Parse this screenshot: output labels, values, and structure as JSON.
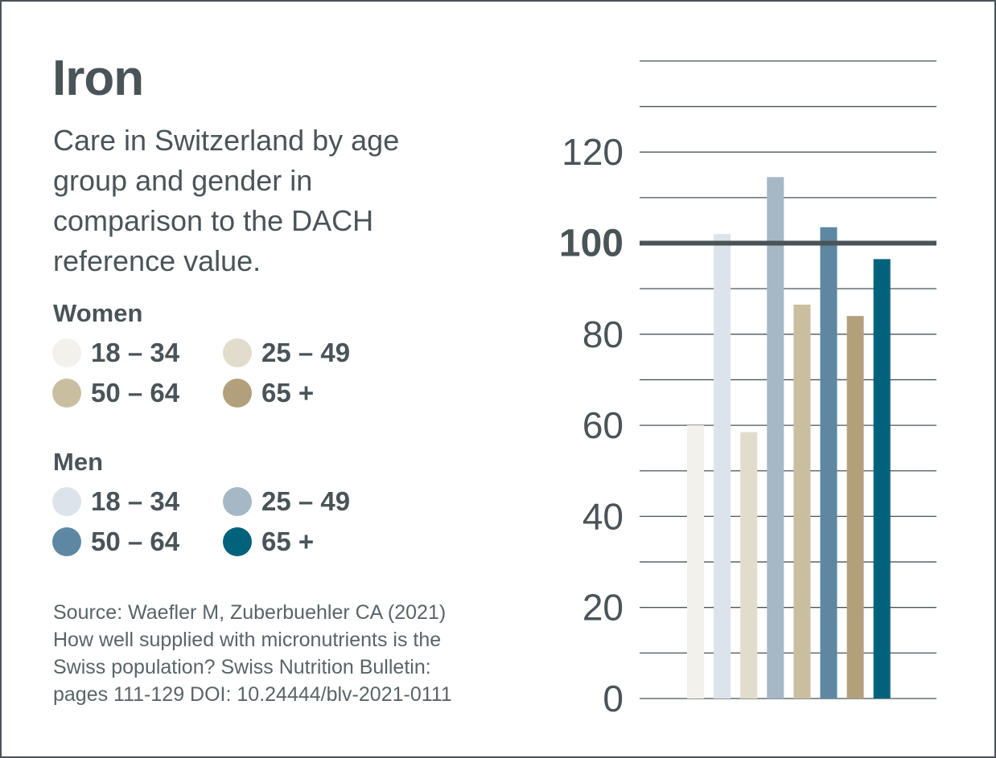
{
  "colors": {
    "women_18_34": "#f3f1ec",
    "women_25_49": "#e2dccd",
    "women_50_64": "#c9bea0",
    "women_65_plus": "#b2a07c",
    "men_18_34": "#dde3ea",
    "men_25_49": "#a6b7c6",
    "men_50_64": "#5e87a3",
    "men_65_plus": "#02627c",
    "text": "#4a5458",
    "grid": "#4a5458"
  },
  "header": {
    "title": "Iron",
    "subtitle": "Care in Switzerland by age group and gender in comparison to the DACH reference value."
  },
  "legend": {
    "women_label": "Women",
    "men_label": "Men",
    "women": [
      {
        "label": "18 – 34",
        "color": "#f3f1ec"
      },
      {
        "label": "25 – 49",
        "color": "#e2dccd"
      },
      {
        "label": "50 – 64",
        "color": "#c9bea0"
      },
      {
        "label": "65 +",
        "color": "#b2a07c"
      }
    ],
    "men": [
      {
        "label": "18 – 34",
        "color": "#dde3ea"
      },
      {
        "label": "25 – 49",
        "color": "#a6b7c6"
      },
      {
        "label": "50 – 64",
        "color": "#5e87a3"
      },
      {
        "label": "65 +",
        "color": "#02627c"
      }
    ]
  },
  "source": {
    "line1": "Source: Waefler M, Zuberbuehler CA (2021)",
    "line2": "How well supplied with micronutrients is the",
    "line3": "Swiss population? Swiss Nutrition Bulletin:",
    "line4": "pages 111-129 DOI: 10.24444/blv-2021-0111"
  },
  "chart_data": {
    "type": "bar",
    "title": "Iron",
    "ylim": [
      0,
      140
    ],
    "gridlines_every": 10,
    "yticks": [
      0,
      20,
      40,
      60,
      80,
      100,
      120
    ],
    "reference_line": {
      "value": 100,
      "label": "100"
    },
    "series": [
      {
        "name": "Women 18 – 34",
        "value": 60,
        "color": "#f3f1ec"
      },
      {
        "name": "Men 18 – 34",
        "value": 102,
        "color": "#dde3ea"
      },
      {
        "name": "Women 25 – 49",
        "value": 58.5,
        "color": "#e2dccd"
      },
      {
        "name": "Men 25 – 49",
        "value": 114.5,
        "color": "#a6b7c6"
      },
      {
        "name": "Women 50 – 64",
        "value": 86.5,
        "color": "#c9bea0"
      },
      {
        "name": "Men 50 – 64",
        "value": 103.5,
        "color": "#5e87a3"
      },
      {
        "name": "Women 65 +",
        "value": 84,
        "color": "#b2a07c"
      },
      {
        "name": "Men 65 +",
        "value": 96.5,
        "color": "#02627c"
      }
    ]
  }
}
